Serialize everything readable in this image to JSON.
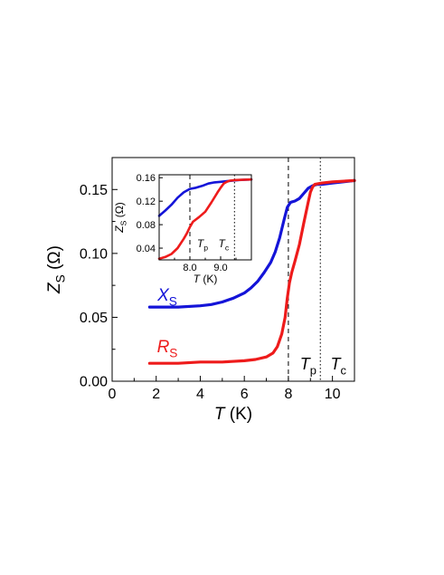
{
  "chart_data": [
    {
      "type": "line",
      "xlabel": {
        "var": "T",
        "unit": " (K)"
      },
      "ylabel": {
        "var": "Z",
        "sub": "S",
        "unit": " (Ω)"
      },
      "xlim": [
        0,
        11
      ],
      "ylim": [
        0,
        0.175
      ],
      "xticks": [
        0,
        2,
        4,
        6,
        8,
        10
      ],
      "xtick_labels": [
        "0",
        "2",
        "4",
        "6",
        "8",
        "10"
      ],
      "yticks": [
        0,
        0.05,
        0.1,
        0.15
      ],
      "ytick_labels": [
        "0.00",
        "0.05",
        "0.10",
        "0.15"
      ],
      "grid": false,
      "series": [
        {
          "name": "X_S",
          "label_var": "X",
          "label_sub": "S",
          "color": "#1414d8",
          "x": [
            1.7,
            2.5,
            3.0,
            4.0,
            4.5,
            5.0,
            5.5,
            6.0,
            6.3,
            6.6,
            6.9,
            7.2,
            7.4,
            7.6,
            7.8,
            7.95,
            8.1,
            8.3,
            8.5,
            8.7,
            8.9,
            9.1,
            9.3,
            9.5,
            10.0,
            10.5,
            11.0
          ],
          "y": [
            0.058,
            0.058,
            0.058,
            0.059,
            0.06,
            0.062,
            0.065,
            0.069,
            0.073,
            0.078,
            0.085,
            0.093,
            0.101,
            0.112,
            0.126,
            0.136,
            0.14,
            0.141,
            0.143,
            0.147,
            0.151,
            0.153,
            0.154,
            0.154,
            0.155,
            0.156,
            0.157
          ]
        },
        {
          "name": "R_S",
          "label_var": "R",
          "label_sub": "S",
          "color": "#ee1b1b",
          "x": [
            1.7,
            3.0,
            4.0,
            5.0,
            6.0,
            6.5,
            7.0,
            7.3,
            7.5,
            7.7,
            7.85,
            7.95,
            8.05,
            8.15,
            8.3,
            8.5,
            8.7,
            8.9,
            9.0,
            9.1,
            9.2,
            9.5,
            10.0,
            11.0
          ],
          "y": [
            0.014,
            0.014,
            0.015,
            0.015,
            0.016,
            0.017,
            0.019,
            0.022,
            0.027,
            0.037,
            0.05,
            0.065,
            0.077,
            0.085,
            0.094,
            0.107,
            0.124,
            0.14,
            0.148,
            0.152,
            0.154,
            0.155,
            0.156,
            0.157
          ]
        }
      ],
      "vlines": [
        {
          "x": 8.0,
          "style": "dashed",
          "label_var": "T",
          "label_sub": "p"
        },
        {
          "x": 9.45,
          "style": "dotted",
          "label_var": "T",
          "label_sub": "c"
        }
      ]
    },
    {
      "type": "line",
      "role": "inset",
      "xlabel": {
        "var": "T",
        "unit": " (K)"
      },
      "ylabel": {
        "var": "Z",
        "sub": "S",
        "unit": " (Ω)"
      },
      "xlim": [
        7.0,
        10.0
      ],
      "ylim": [
        0.02,
        0.165
      ],
      "xticks": [
        8.0,
        9.0
      ],
      "xtick_labels": [
        "8.0",
        "9.0"
      ],
      "yticks": [
        0.04,
        0.08,
        0.12,
        0.16
      ],
      "ytick_labels": [
        "0.04",
        "0.08",
        "0.12",
        "0.16"
      ],
      "minor_xticks": [
        7.5,
        8.5,
        9.5
      ],
      "series": [
        {
          "name": "X_S",
          "color": "#1414d8",
          "x": [
            7.0,
            7.2,
            7.4,
            7.6,
            7.8,
            8.0,
            8.2,
            8.4,
            8.6,
            8.8,
            9.0,
            9.2,
            9.4,
            9.6,
            10.0
          ],
          "y": [
            0.095,
            0.104,
            0.114,
            0.126,
            0.135,
            0.141,
            0.143,
            0.146,
            0.15,
            0.152,
            0.153,
            0.154,
            0.155,
            0.156,
            0.157
          ]
        },
        {
          "name": "R_S",
          "color": "#ee1b1b",
          "x": [
            7.0,
            7.2,
            7.4,
            7.6,
            7.8,
            7.9,
            8.0,
            8.1,
            8.3,
            8.5,
            8.7,
            8.9,
            9.0,
            9.1,
            9.2,
            9.3,
            9.5,
            10.0
          ],
          "y": [
            0.022,
            0.025,
            0.03,
            0.04,
            0.056,
            0.065,
            0.076,
            0.085,
            0.093,
            0.102,
            0.118,
            0.135,
            0.143,
            0.15,
            0.153,
            0.155,
            0.156,
            0.157
          ]
        }
      ],
      "vlines": [
        {
          "x": 8.0,
          "style": "dashed",
          "label_var": "T",
          "label_sub": "p"
        },
        {
          "x": 9.45,
          "style": "dotted",
          "label_var": "T",
          "label_sub": "c"
        }
      ]
    }
  ]
}
